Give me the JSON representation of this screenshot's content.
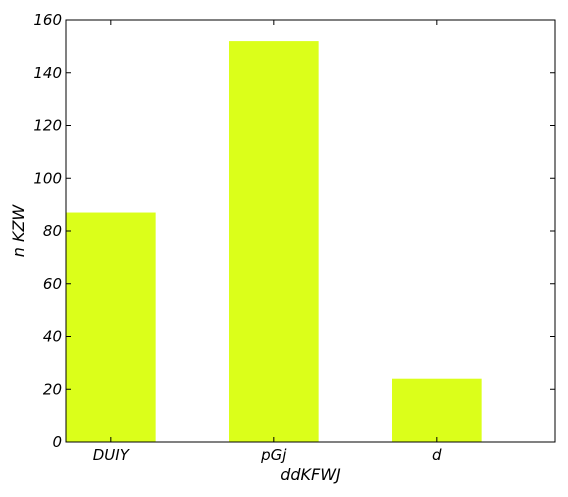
{
  "chart_data": {
    "type": "bar",
    "categories": [
      "DUIY",
      "pGj",
      "d"
    ],
    "values": [
      87,
      152,
      24
    ],
    "xlabel": "ddKFWJ",
    "ylabel": "n KZW",
    "ylim": [
      0,
      160
    ],
    "yticks": [
      0,
      20,
      40,
      60,
      80,
      100,
      120,
      140,
      160
    ],
    "grid": false,
    "legend": "none",
    "colors": {
      "bar": "#dbff1a",
      "axis": "#000000",
      "background": "#ffffff"
    }
  }
}
